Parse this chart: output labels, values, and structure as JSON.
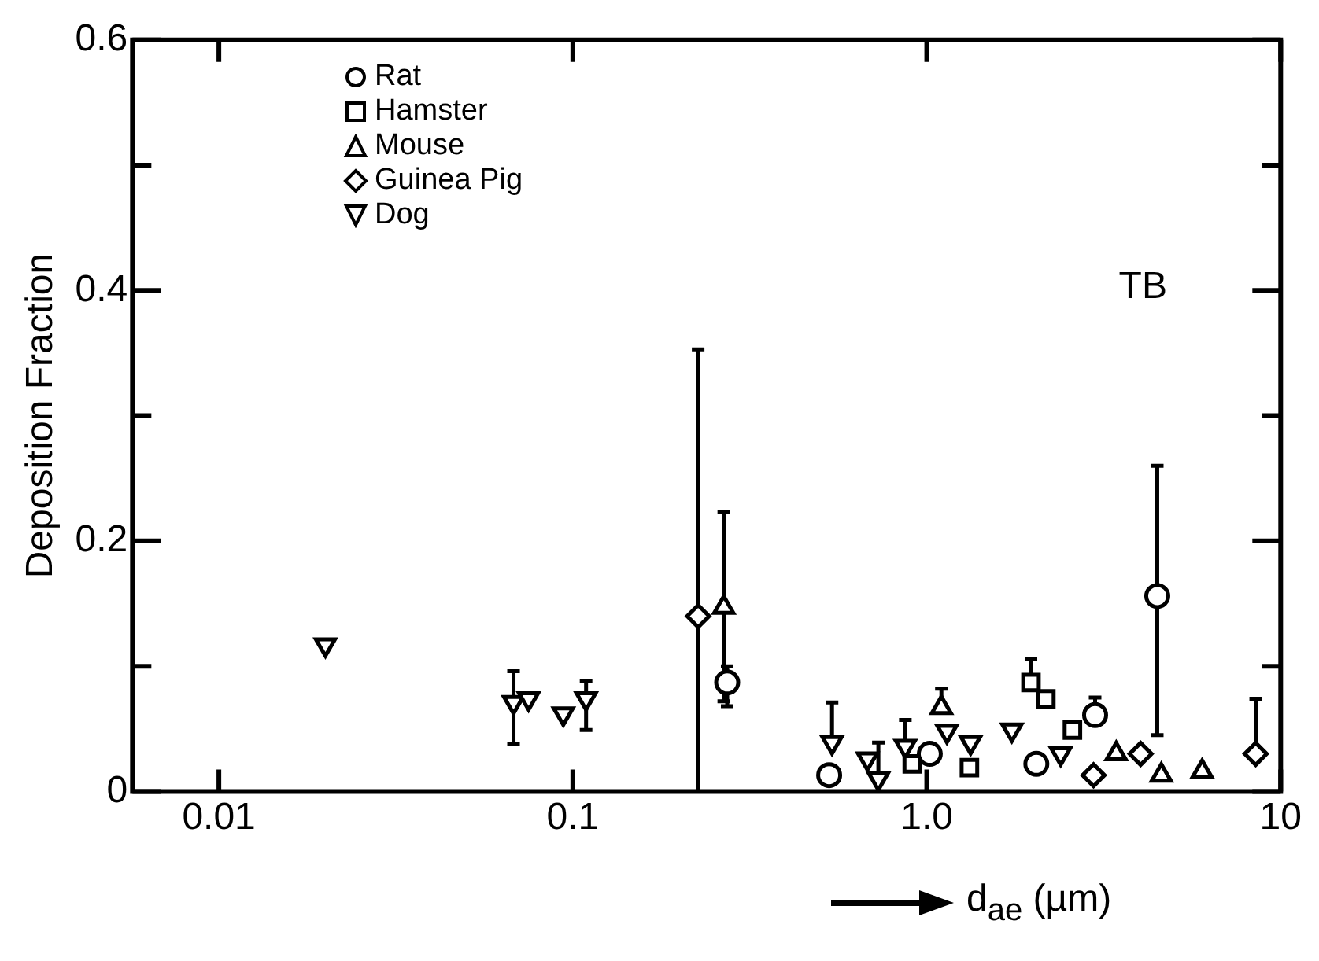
{
  "chart_data": {
    "type": "scatter",
    "xlabel": "d$_{ae}$ (µm)",
    "ylabel": "Deposition Fraction",
    "log": "x",
    "xlim": [
      0.0057,
      10
    ],
    "xticks": [
      0.01,
      0.1,
      {
        "value": 1,
        "label": "1.0"
      },
      10
    ],
    "ylim": [
      0,
      0.6
    ],
    "yticks": [
      0,
      {
        "value": 0.1,
        "label": null
      },
      0.2,
      {
        "value": 0.3,
        "label": null
      },
      0.4,
      {
        "value": 0.5,
        "label": null
      },
      0.6
    ],
    "grid": false,
    "legend": "top left",
    "annotations": [
      "TB"
    ],
    "series": [
      {
        "name": "Rat",
        "color": "#000000",
        "marker": "circle",
        "x": [
          0.273,
          0.53,
          1.02,
          2.04,
          2.99,
          4.48
        ],
        "values": [
          0.087,
          0.013,
          0.03,
          0.022,
          0.061,
          0.156
        ],
        "errors": [
          [
            0.068,
            0.1
          ],
          null,
          null,
          null,
          [
            0.061,
            0.075
          ],
          [
            0.045,
            0.26
          ]
        ]
      },
      {
        "name": "Hamster",
        "color": "#000000",
        "marker": "square",
        "x": [
          0.91,
          1.32,
          1.97,
          2.17,
          2.58
        ],
        "values": [
          0.022,
          0.019,
          0.087,
          0.074,
          0.049
        ],
        "errors": [
          null,
          null,
          [
            0.087,
            0.106
          ],
          null,
          null
        ]
      },
      {
        "name": "Mouse",
        "color": "#000000",
        "marker": "triangle",
        "x": [
          0.267,
          1.1,
          3.43,
          4.6,
          6.0
        ],
        "values": [
          0.147,
          0.067,
          0.03,
          0.013,
          0.016
        ],
        "errors": [
          [
            0.072,
            0.223
          ],
          [
            0.067,
            0.082
          ],
          null,
          null,
          null
        ]
      },
      {
        "name": "Guinea Pig",
        "color": "#000000",
        "marker": "diamond",
        "x": [
          0.226,
          2.96,
          4.02,
          8.5
        ],
        "values": [
          0.14,
          0.013,
          0.03,
          0.03
        ],
        "errors": [
          [
            0,
            0.353
          ],
          null,
          null,
          [
            0.03,
            0.074
          ]
        ]
      },
      {
        "name": "Dog",
        "color": "#000000",
        "marker": "triangle-down",
        "x": [
          0.02,
          0.068,
          0.075,
          0.094,
          0.109,
          0.54,
          0.68,
          0.73,
          0.87,
          1.14,
          1.33,
          1.74,
          2.39
        ],
        "values": [
          0.117,
          0.071,
          0.074,
          0.062,
          0.074,
          0.039,
          0.026,
          0.01,
          0.036,
          0.048,
          0.039,
          0.049,
          0.03
        ],
        "errors": [
          null,
          [
            0.038,
            0.096
          ],
          null,
          null,
          [
            0.049,
            0.088
          ],
          [
            0.039,
            0.071
          ],
          null,
          [
            0.01,
            0.039
          ],
          [
            0.036,
            0.057
          ],
          null,
          null,
          null,
          null
        ]
      }
    ]
  }
}
